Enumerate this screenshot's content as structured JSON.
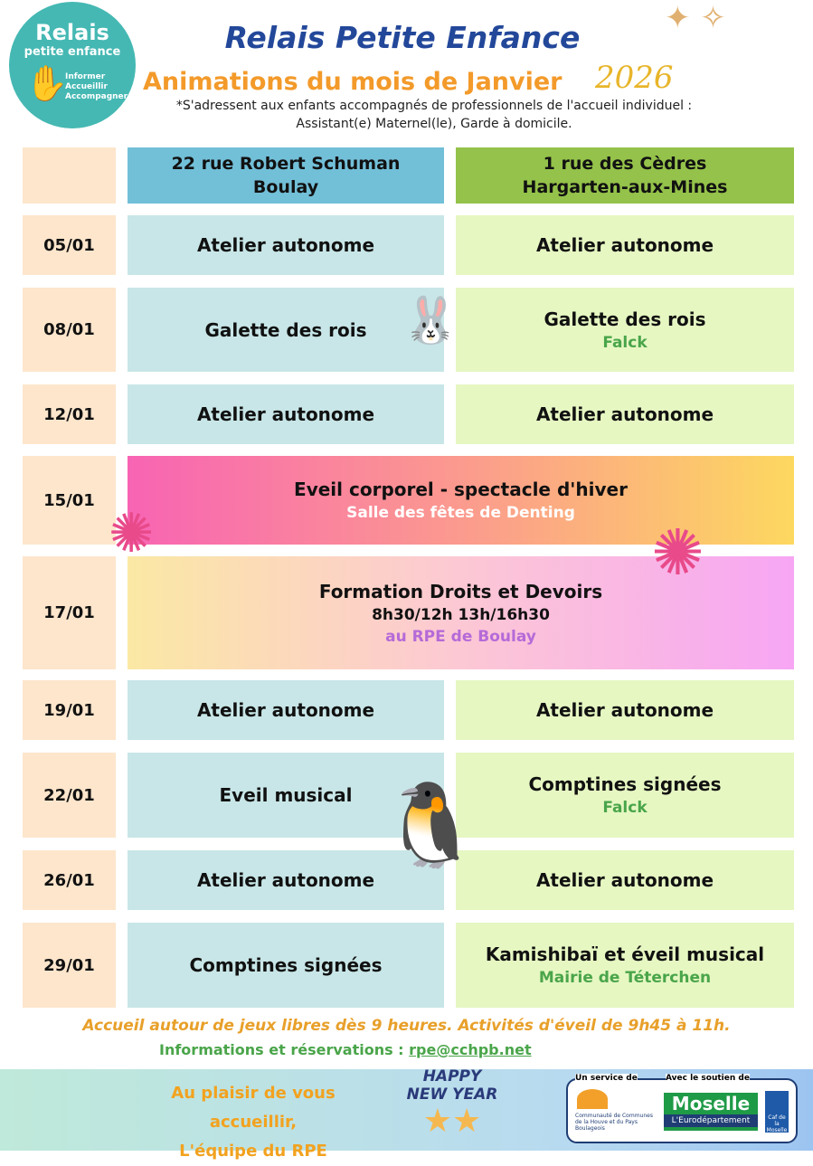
{
  "logo": {
    "line1": "Relais",
    "line2": "petite enfance",
    "line3": "Informer",
    "line4": "Accueillir",
    "line5": "Accompagner"
  },
  "header": {
    "title": "Relais Petite Enfance",
    "subtitle": "Animations du mois de Janvier",
    "year": "2026",
    "note1": "*S'adressent aux enfants accompagnés de professionnels de l'accueil individuel :",
    "note2": "Assistant(e) Maternel(le), Garde à domicile."
  },
  "columns": {
    "left": {
      "line1": "22 rue Robert Schuman",
      "line2": "Boulay"
    },
    "right": {
      "line1": "1 rue des Cèdres",
      "line2": "Hargarten-aux-Mines"
    }
  },
  "rows": [
    {
      "date": "05/01",
      "left": "Atelier autonome",
      "right": "Atelier autonome"
    },
    {
      "date": "08/01",
      "left": "Galette des rois",
      "right": "Galette des rois",
      "right_loc": "Falck"
    },
    {
      "date": "12/01",
      "left": "Atelier autonome",
      "right": "Atelier autonome"
    },
    {
      "date": "15/01",
      "span": "Eveil corporel - spectacle d'hiver",
      "span_loc": "Salle des fêtes de Denting"
    },
    {
      "date": "17/01",
      "span": "Formation Droits et Devoirs",
      "span_time": "8h30/12h 13h/16h30",
      "span_loc": "au RPE de Boulay"
    },
    {
      "date": "19/01",
      "left": "Atelier autonome",
      "right": "Atelier autonome"
    },
    {
      "date": "22/01",
      "left": "Eveil musical",
      "right": "Comptines signées",
      "right_loc": "Falck"
    },
    {
      "date": "26/01",
      "left": "Atelier autonome",
      "right": "Atelier autonome"
    },
    {
      "date": "29/01",
      "left": "Comptines signées",
      "right": "Kamishibaï et éveil musical",
      "right_loc": "Mairie de Téterchen"
    }
  ],
  "footer": {
    "info": "Accueil autour de jeux libres dès 9 heures.  Activités d'éveil de 9h45 à 11h.",
    "contact_label": "Informations et réservations : ",
    "email": "rpe@cchpb.net",
    "bye1": "Au plaisir de vous accueillir,",
    "bye2": "L'équipe du RPE",
    "hny1": "HAPPY",
    "hny2": "NEW YEAR",
    "partners": {
      "service": "Un service de",
      "support": "Avec le soutien de",
      "cc": "Communauté de Communes de la Houve et du Pays Boulageois",
      "moselle": "Moselle",
      "euro": "L'Eurodépartement",
      "caf": "Caf de la Moselle"
    }
  },
  "colors": {
    "title": "#23489a",
    "accent": "#f39a2a",
    "header_left": "#72bfd8",
    "header_right": "#94c24a",
    "location": "#4aa54a",
    "purple": "#b56ad8"
  }
}
